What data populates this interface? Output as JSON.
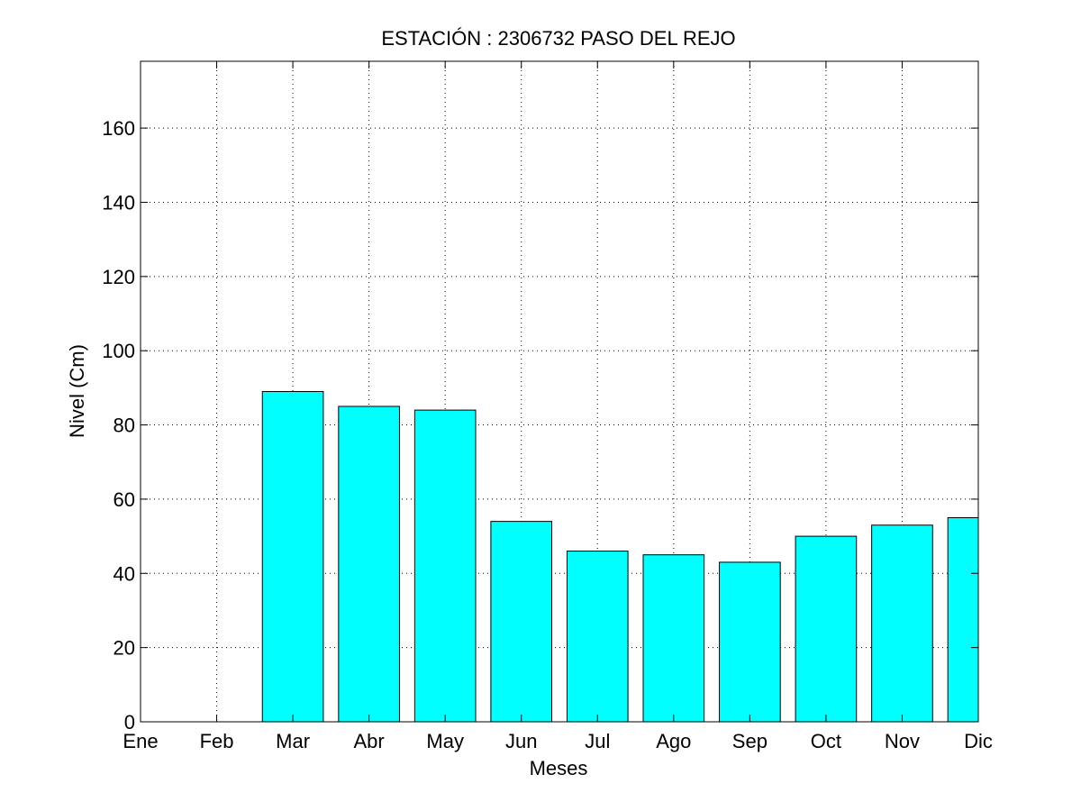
{
  "chart_data": {
    "type": "bar",
    "title": "ESTACIÓN :  2306732  PASO DEL REJO",
    "xlabel": "Meses",
    "ylabel": "Nivel (Cm)",
    "categories": [
      "Ene",
      "Feb",
      "Mar",
      "Abr",
      "May",
      "Jun",
      "Jul",
      "Ago",
      "Sep",
      "Oct",
      "Nov",
      "Dic"
    ],
    "values": [
      0,
      0,
      89,
      85,
      84,
      54,
      46,
      45,
      43,
      50,
      53,
      55
    ],
    "xlim": [
      1,
      12
    ],
    "ylim": [
      0,
      178
    ],
    "yticks": [
      0,
      20,
      40,
      60,
      80,
      100,
      120,
      140,
      160
    ],
    "grid": true,
    "bar_color": "#00ffff"
  }
}
